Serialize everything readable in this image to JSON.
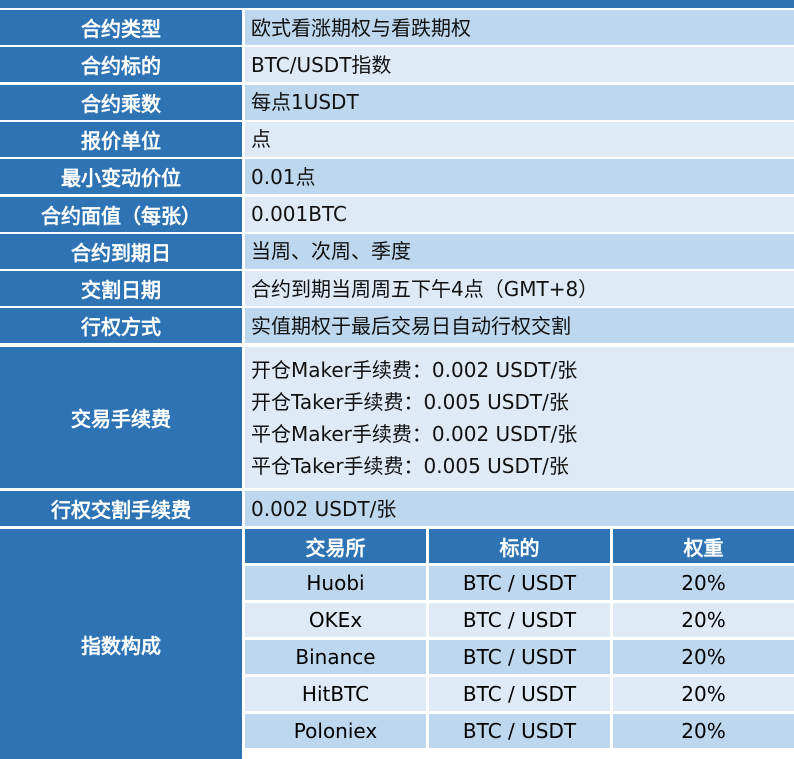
{
  "rows": [
    {
      "label": "合约类型",
      "value": "欧式看涨期权与看跌期权"
    },
    {
      "label": "合约标的",
      "value": "BTC/USDT指数"
    },
    {
      "label": "合约乘数",
      "value": "每点1USDT"
    },
    {
      "label": "报价单位",
      "value": "点"
    },
    {
      "label": "最小变动价位",
      "value": "0.01点"
    },
    {
      "label": "合约面值（每张）",
      "value": "0.001BTC"
    },
    {
      "label": "合约到期日",
      "value": "当周、次周、季度"
    },
    {
      "label": "交割日期",
      "value": "合约到期当周周五下午4点（GMT+8）"
    },
    {
      "label": "行权方式",
      "value": "实值期权于最后交易日自动行权交割"
    }
  ],
  "fees": {
    "label": "交易手续费",
    "lines": [
      "开仓Maker手续费：0.002 USDT/张",
      "开仓Taker手续费：0.005 USDT/张",
      "平仓Maker手续费：0.002 USDT/张",
      "平仓Taker手续费：0.005 USDT/张"
    ]
  },
  "exercise_fee": {
    "label": "行权交割手续费",
    "value": "0.002 USDT/张"
  },
  "index": {
    "label": "指数构成",
    "headers": [
      "交易所",
      "标的",
      "权重"
    ],
    "rows": [
      [
        "Huobi",
        "BTC / USDT",
        "20%"
      ],
      [
        "OKEx",
        "BTC / USDT",
        "20%"
      ],
      [
        "Binance",
        "BTC / USDT",
        "20%"
      ],
      [
        "HitBTC",
        "BTC / USDT",
        "20%"
      ],
      [
        "Poloniex",
        "BTC / USDT",
        "20%"
      ]
    ]
  },
  "colors": {
    "header": "#2e74b5",
    "cell_dark": "#bdd7ee",
    "cell_light": "#deebf7"
  }
}
